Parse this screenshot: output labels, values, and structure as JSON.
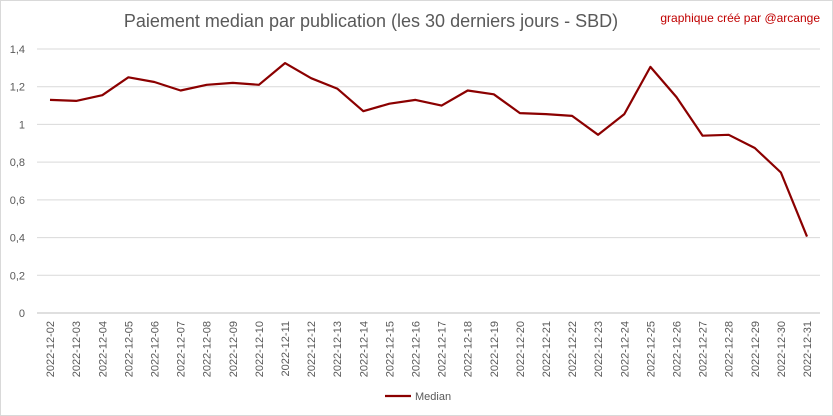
{
  "title": "Paiement median par publication (les 30 derniers jours - SBD)",
  "credit": "graphique créé par @arcange",
  "chart_data": {
    "type": "line",
    "title": "Paiement median par publication (les 30 derniers jours - SBD)",
    "x": [
      "2022-12-02",
      "2022-12-03",
      "2022-12-04",
      "2022-12-05",
      "2022-12-06",
      "2022-12-07",
      "2022-12-08",
      "2022-12-09",
      "2022-12-10",
      "2022-12-11",
      "2022-12-12",
      "2022-12-13",
      "2022-12-14",
      "2022-12-15",
      "2022-12-16",
      "2022-12-17",
      "2022-12-18",
      "2022-12-19",
      "2022-12-20",
      "2022-12-21",
      "2022-12-22",
      "2022-12-23",
      "2022-12-24",
      "2022-12-25",
      "2022-12-26",
      "2022-12-27",
      "2022-12-28",
      "2022-12-29",
      "2022-12-30",
      "2022-12-31"
    ],
    "series": [
      {
        "name": "Median",
        "color": "#8b0000",
        "values": [
          1.13,
          1.125,
          1.155,
          1.25,
          1.225,
          1.18,
          1.21,
          1.22,
          1.21,
          1.325,
          1.245,
          1.19,
          1.07,
          1.11,
          1.13,
          1.1,
          1.18,
          1.16,
          1.06,
          1.055,
          1.045,
          0.945,
          1.055,
          1.305,
          1.145,
          0.94,
          0.945,
          0.875,
          0.745,
          0.405
        ]
      }
    ],
    "ylim": [
      0,
      1.4
    ],
    "yticks": [
      "0",
      "0,2",
      "0,4",
      "0,6",
      "0,8",
      "1",
      "1,2",
      "1,4"
    ],
    "ytick_values": [
      0,
      0.2,
      0.4,
      0.6,
      0.8,
      1,
      1.2,
      1.4
    ],
    "grid": true,
    "legend": "bottom"
  }
}
